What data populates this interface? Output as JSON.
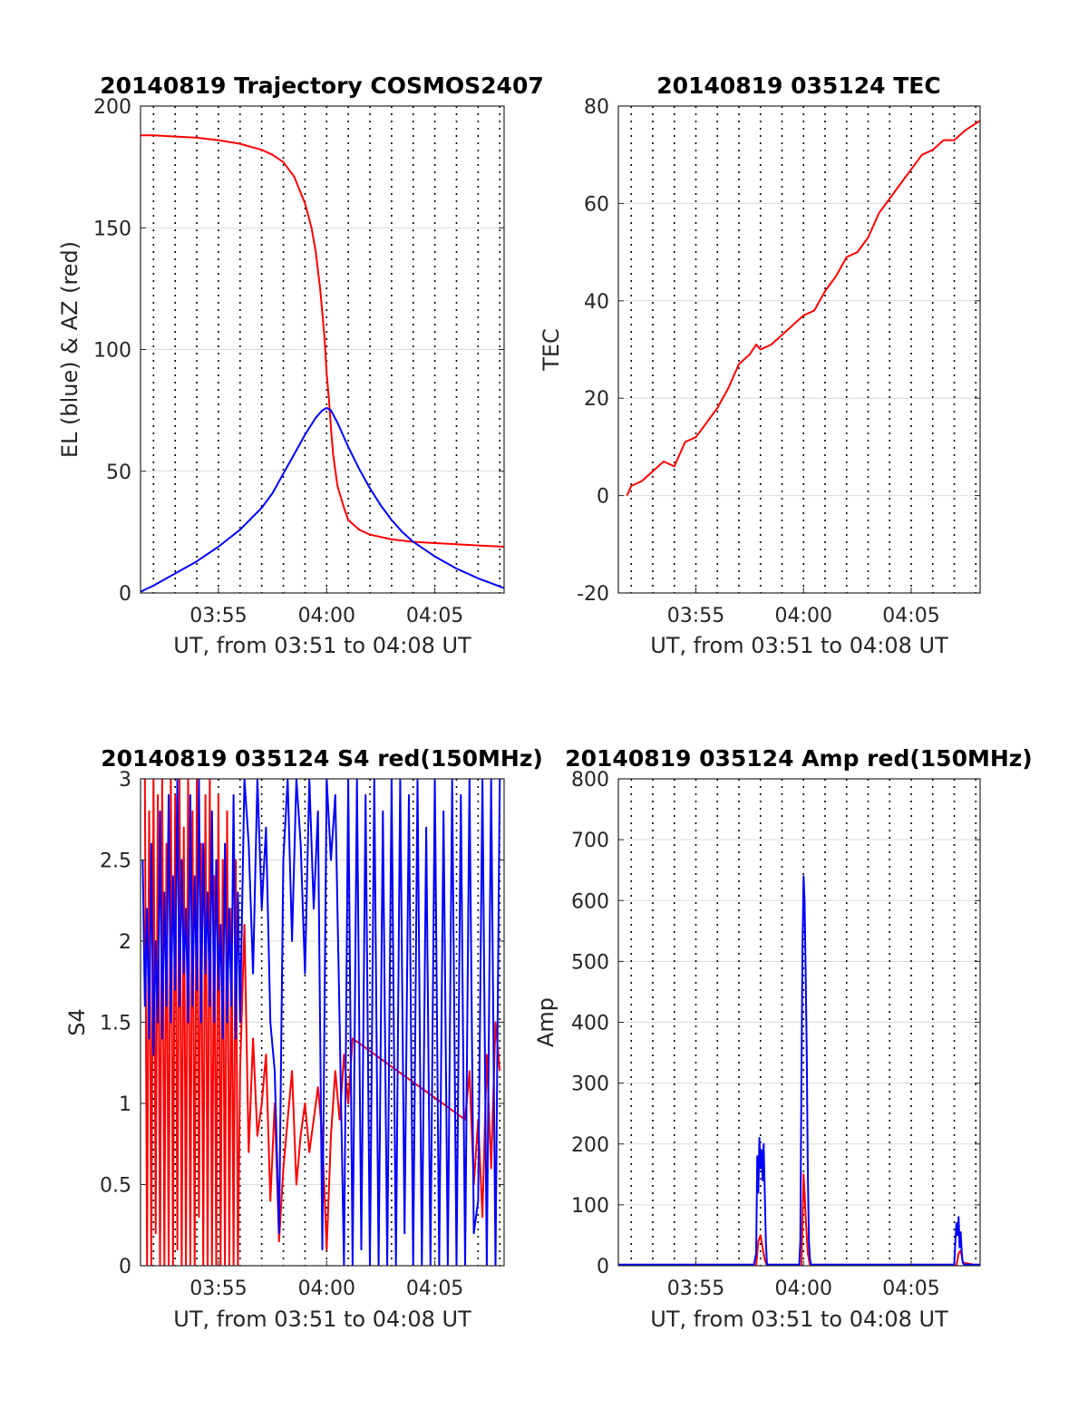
{
  "colors": {
    "red": "#ff0000",
    "blue": "#0000ff",
    "grid": "#dcdcdc",
    "axis": "#262626"
  },
  "chart_data": [
    {
      "id": "trajectory",
      "type": "line",
      "title": "20140819 Trajectory COSMOS2407",
      "xlabel": "UT, from 03:51 to 04:08 UT",
      "ylabel": "EL (blue) & AZ (red)",
      "xlim": [
        51.4,
        68.2
      ],
      "ylim": [
        0,
        200
      ],
      "xticks": [
        {
          "value": 55,
          "label": "03:55"
        },
        {
          "value": 60,
          "label": "04:00"
        },
        {
          "value": 65,
          "label": "04:05"
        }
      ],
      "yticks": [
        0,
        50,
        100,
        150,
        200
      ],
      "grid": true,
      "series": [
        {
          "color": "red",
          "x": [
            51.4,
            52,
            53,
            54,
            55,
            56,
            57,
            57.5,
            58,
            58.5,
            59,
            59.3,
            59.5,
            59.7,
            59.8,
            59.9,
            60,
            60.1,
            60.2,
            60.3,
            60.5,
            60.8,
            61,
            61.5,
            62,
            62.5,
            63,
            64,
            65,
            66,
            67,
            68.2
          ],
          "y": [
            188,
            188,
            187.5,
            187,
            186,
            184.5,
            182,
            180,
            177,
            171,
            160,
            150,
            140,
            125,
            115,
            105,
            90,
            80,
            68,
            57,
            44,
            35,
            30,
            26,
            24,
            23,
            22,
            21,
            20.5,
            20,
            19.5,
            19
          ]
        },
        {
          "color": "blue",
          "x": [
            51.4,
            52,
            53,
            54,
            55,
            56,
            57,
            57.5,
            58,
            58.5,
            59,
            59.5,
            59.8,
            60,
            60.2,
            60.5,
            61,
            61.5,
            62,
            62.5,
            63,
            63.5,
            64,
            65,
            66,
            67,
            68.2
          ],
          "y": [
            0.5,
            3,
            8,
            13,
            19,
            26,
            35,
            41,
            49,
            57,
            65,
            72,
            75,
            76,
            75,
            70,
            60,
            51,
            43,
            36,
            30,
            25,
            21,
            15,
            10,
            6,
            2
          ]
        }
      ]
    },
    {
      "id": "tec",
      "type": "line",
      "title": "20140819 035124 TEC",
      "xlabel": "UT, from 03:51 to 04:08 UT",
      "ylabel": "TEC",
      "xlim": [
        51.4,
        68.2
      ],
      "ylim": [
        -20,
        80
      ],
      "xticks": [
        {
          "value": 55,
          "label": "03:55"
        },
        {
          "value": 60,
          "label": "04:00"
        },
        {
          "value": 65,
          "label": "04:05"
        }
      ],
      "yticks": [
        -20,
        0,
        20,
        40,
        60,
        80
      ],
      "grid": true,
      "series": [
        {
          "color": "red",
          "x": [
            51.8,
            52,
            52.5,
            53,
            53.5,
            54,
            54.5,
            55,
            55.5,
            56,
            56.5,
            57,
            57.5,
            57.8,
            58,
            58.5,
            59,
            59.5,
            60,
            60.5,
            61,
            61.5,
            62,
            62.5,
            63,
            63.5,
            64,
            64.5,
            65,
            65.5,
            66,
            66.5,
            67,
            67.5,
            68.2
          ],
          "y": [
            0,
            2,
            3,
            5,
            7,
            6,
            11,
            12,
            15,
            18,
            22,
            27,
            29,
            31,
            30,
            31,
            33,
            35,
            37,
            38,
            42,
            45,
            49,
            50,
            53,
            58,
            61,
            64,
            67,
            70,
            71,
            73,
            73,
            75,
            77
          ]
        }
      ]
    },
    {
      "id": "s4",
      "type": "line",
      "title": "20140819 035124 S4 red(150MHz)",
      "xlabel": "UT, from 03:51 to 04:08 UT",
      "ylabel": "S4",
      "xlim": [
        51.4,
        68.2
      ],
      "ylim": [
        0,
        3
      ],
      "xticks": [
        {
          "value": 55,
          "label": "03:55"
        },
        {
          "value": 60,
          "label": "04:00"
        },
        {
          "value": 65,
          "label": "04:05"
        }
      ],
      "yticks": [
        0,
        0.5,
        1,
        1.5,
        2,
        2.5,
        3
      ],
      "grid": true,
      "series": [
        {
          "color": "red",
          "x": [
            51.6,
            51.7,
            51.8,
            51.9,
            52,
            52.1,
            52.2,
            52.3,
            52.4,
            52.5,
            52.6,
            52.7,
            52.8,
            52.9,
            53,
            53.1,
            53.2,
            53.3,
            53.4,
            53.5,
            53.6,
            53.7,
            53.8,
            53.9,
            54,
            54.1,
            54.2,
            54.3,
            54.4,
            54.5,
            54.6,
            54.7,
            54.8,
            54.9,
            55,
            55.1,
            55.2,
            55.3,
            55.4,
            55.5,
            55.6,
            55.7,
            55.8,
            55.9,
            56,
            56.2,
            56.4,
            56.6,
            56.8,
            57,
            57.2,
            57.4,
            57.6,
            57.8,
            58,
            58.2,
            58.4,
            58.6,
            58.8,
            59,
            59.2,
            59.4,
            59.6,
            59.8,
            60,
            60.2,
            60.4,
            60.6,
            60.8,
            61,
            61.2,
            66.4,
            66.6,
            66.8,
            67,
            67.2,
            67.4,
            67.6,
            67.8,
            68
          ],
          "y": [
            3,
            0,
            2.8,
            0,
            3,
            0.2,
            2.9,
            0,
            3,
            0,
            2.6,
            0,
            3,
            0,
            2.9,
            0.1,
            3,
            0,
            2.7,
            0,
            3,
            0,
            2.8,
            0,
            3,
            0.3,
            2.6,
            0,
            2.9,
            0,
            3,
            0,
            2.4,
            0,
            2.9,
            0,
            2.5,
            0,
            2.8,
            0,
            2.2,
            0,
            2.5,
            0,
            1.2,
            2.1,
            0.7,
            1.4,
            0.8,
            1.0,
            1.3,
            0.4,
            1.0,
            0.15,
            0.6,
            0.9,
            1.2,
            0.5,
            0.8,
            1.0,
            0.7,
            0.9,
            1.1,
            0.8,
            0.1,
            0.8,
            1.2,
            0.9,
            1.3,
            1.0,
            1.4,
            0.9,
            1.2,
            0.5,
            0.9,
            0.3,
            1.3,
            0.6,
            1.5,
            1.2
          ]
        },
        {
          "color": "blue",
          "x": [
            51.5,
            51.6,
            51.7,
            51.8,
            51.9,
            52,
            52.1,
            52.2,
            52.3,
            52.4,
            52.5,
            52.6,
            52.7,
            52.8,
            52.9,
            53,
            53.1,
            53.2,
            53.3,
            53.4,
            53.5,
            53.6,
            53.7,
            53.8,
            53.9,
            54,
            54.1,
            54.2,
            54.3,
            54.4,
            54.5,
            54.6,
            54.7,
            54.8,
            54.9,
            55,
            55.1,
            55.2,
            55.3,
            55.4,
            55.5,
            55.6,
            55.7,
            55.8,
            55.9,
            56,
            56.2,
            56.4,
            56.6,
            56.8,
            57,
            57.2,
            57.4,
            57.6,
            57.8,
            58,
            58.2,
            58.4,
            58.6,
            58.8,
            59,
            59.2,
            59.4,
            59.6,
            59.8,
            60,
            60.2,
            60.4,
            60.6,
            60.8,
            61,
            61.2,
            61.4,
            61.6,
            61.8,
            62,
            62.2,
            62.4,
            62.6,
            62.8,
            63,
            63.2,
            63.4,
            63.6,
            63.8,
            64,
            64.2,
            64.4,
            64.6,
            64.8,
            65,
            65.2,
            65.4,
            65.6,
            65.8,
            66,
            66.2,
            66.4,
            66.6,
            66.8,
            67,
            67.2,
            67.4,
            67.6,
            67.8,
            68
          ],
          "y": [
            2.5,
            1.6,
            2.2,
            1.4,
            2.6,
            1.3,
            2.0,
            1.5,
            2.8,
            1.4,
            2.3,
            1.6,
            2.9,
            1.5,
            2.4,
            1.7,
            3,
            1.6,
            2.5,
            1.8,
            2.2,
            1.5,
            2.9,
            1.6,
            2.4,
            1.7,
            3,
            1.5,
            2.6,
            1.8,
            2.3,
            1.6,
            2.8,
            1.5,
            2.5,
            1.7,
            2.1,
            1.4,
            2.6,
            1.5,
            2.2,
            1.6,
            2.9,
            1.4,
            2.3,
            1.5,
            3,
            2.6,
            1.8,
            3,
            2.2,
            2.7,
            1.5,
            1.2,
            0.2,
            2.5,
            3,
            2.0,
            3,
            2.6,
            1.8,
            3,
            2.2,
            2.8,
            0.1,
            3,
            2.5,
            2.9,
            1.5,
            0,
            3,
            0,
            3,
            0.1,
            2.9,
            0,
            3,
            0,
            2.8,
            0,
            3,
            0,
            3,
            0.2,
            2.9,
            0,
            3,
            0,
            2.7,
            0,
            3,
            0,
            2.8,
            0,
            3,
            0,
            2.9,
            0,
            3,
            0.2,
            0.4,
            3,
            0,
            3,
            0,
            3
          ]
        }
      ]
    },
    {
      "id": "amp",
      "type": "line",
      "title": "20140819 035124 Amp red(150MHz)",
      "xlabel": "UT, from 03:51 to 04:08 UT",
      "ylabel": "Amp",
      "xlim": [
        51.4,
        68.2
      ],
      "ylim": [
        0,
        800
      ],
      "xticks": [
        {
          "value": 55,
          "label": "03:55"
        },
        {
          "value": 60,
          "label": "04:00"
        },
        {
          "value": 65,
          "label": "04:05"
        }
      ],
      "yticks": [
        0,
        100,
        200,
        300,
        400,
        500,
        600,
        700,
        800
      ],
      "grid": true,
      "series": [
        {
          "color": "red",
          "x": [
            51.4,
            57.8,
            57.9,
            58,
            58.1,
            58.2,
            58.3,
            59.9,
            60,
            60.05,
            60.1,
            60.2,
            60.3,
            67.1,
            67.2,
            67.3,
            67.4,
            68.2
          ],
          "y": [
            0,
            0,
            40,
            50,
            30,
            10,
            0,
            0,
            150,
            120,
            80,
            20,
            0,
            0,
            20,
            25,
            5,
            0
          ]
        },
        {
          "color": "blue",
          "x": [
            51.4,
            57.7,
            57.8,
            57.85,
            57.9,
            57.95,
            58,
            58.05,
            58.1,
            58.15,
            58.2,
            58.25,
            58.3,
            59.8,
            59.85,
            59.9,
            59.95,
            60,
            60.05,
            60.1,
            60.15,
            60.2,
            60.25,
            60.3,
            60.35,
            67,
            67.05,
            67.1,
            67.15,
            67.2,
            67.25,
            67.3,
            67.35,
            67.4,
            67.45,
            68.2
          ],
          "y": [
            2,
            2,
            20,
            180,
            120,
            210,
            160,
            190,
            140,
            200,
            120,
            40,
            2,
            2,
            40,
            300,
            520,
            640,
            600,
            480,
            350,
            150,
            40,
            10,
            2,
            2,
            40,
            70,
            50,
            80,
            30,
            55,
            20,
            5,
            2,
            2
          ]
        }
      ]
    }
  ]
}
